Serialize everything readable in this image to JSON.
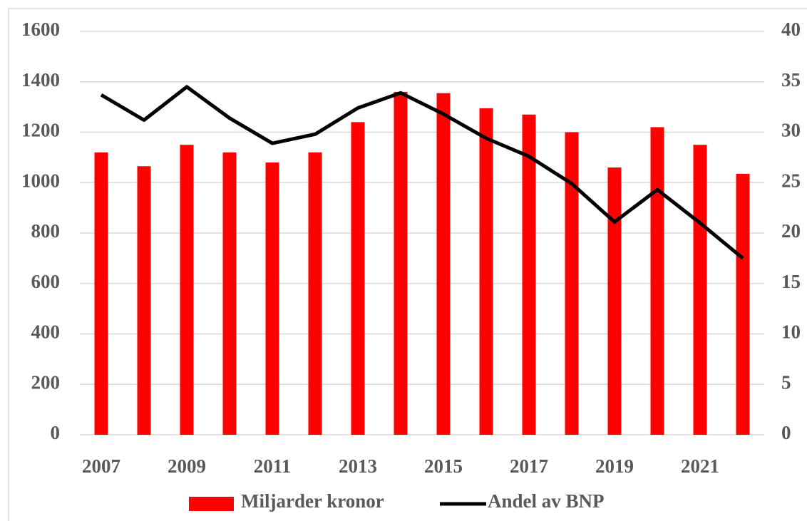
{
  "chart_data": {
    "type": "bar",
    "categories": [
      "2007",
      null,
      "2009",
      null,
      "2011",
      null,
      "2013",
      null,
      "2015",
      null,
      "2017",
      null,
      "2019",
      null,
      "2021",
      null
    ],
    "series": [
      {
        "name": "Miljarder kronor",
        "color": "#ff0000",
        "type": "bar",
        "values": [
          1120,
          1065,
          1150,
          1120,
          1080,
          1120,
          1240,
          1360,
          1355,
          1295,
          1270,
          1200,
          1060,
          1220,
          1150,
          1035
        ]
      },
      {
        "name": "Andel av BNP",
        "color": "#000000",
        "type": "line",
        "axis": "y2",
        "values": [
          33.7,
          31.2,
          34.5,
          31.4,
          28.9,
          29.8,
          32.4,
          33.9,
          31.8,
          29.4,
          27.6,
          24.9,
          21.1,
          24.3,
          21.0,
          17.5
        ]
      }
    ],
    "ylim": [
      0,
      1600
    ],
    "yticks": [
      0,
      200,
      400,
      600,
      800,
      1000,
      1200,
      1400,
      1600
    ],
    "y2lim": [
      0,
      40
    ],
    "y2ticks": [
      0,
      5,
      10,
      15,
      20,
      25,
      30,
      35,
      40
    ],
    "grid": true,
    "legend": "bottom"
  }
}
